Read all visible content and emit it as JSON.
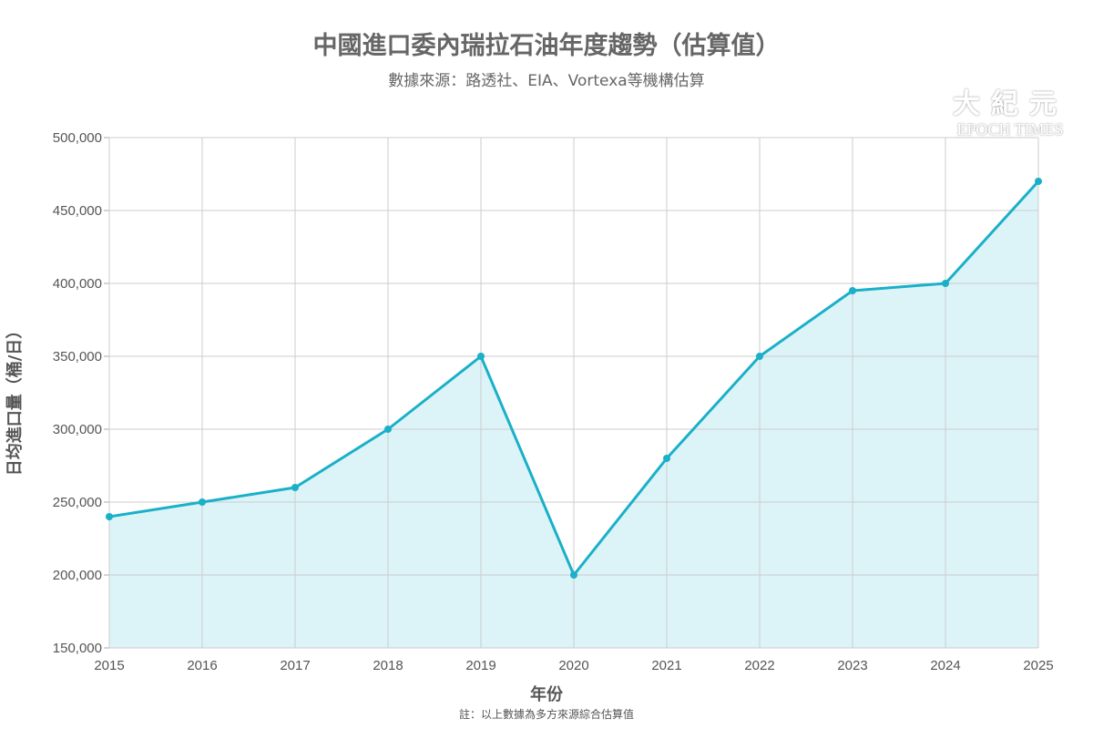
{
  "chart_data": {
    "type": "area",
    "title": "中國進口委內瑞拉石油年度趨勢（估算值）",
    "subtitle": "數據來源：路透社、EIA、Vortexa等機構估算",
    "xlabel": "年份",
    "ylabel": "日均進口量（桶/日）",
    "note": "註：以上數據為多方來源綜合估算值",
    "categories": [
      "2015",
      "2016",
      "2017",
      "2018",
      "2019",
      "2020",
      "2021",
      "2022",
      "2023",
      "2024",
      "2025"
    ],
    "values": [
      240000,
      250000,
      260000,
      300000,
      350000,
      200000,
      280000,
      350000,
      395000,
      400000,
      470000
    ],
    "ylim": [
      150000,
      500000
    ],
    "yticks": [
      150000,
      200000,
      250000,
      300000,
      350000,
      400000,
      450000,
      500000
    ],
    "ytick_labels": [
      "150,000",
      "200,000",
      "250,000",
      "300,000",
      "350,000",
      "400,000",
      "450,000",
      "500,000"
    ],
    "grid": true,
    "legend": "none",
    "colors": {
      "line": "#1ab0c8",
      "fill": "#dcf4f8",
      "grid": "#cccccc"
    }
  },
  "logo": {
    "cn": "大紀元",
    "en": "EPOCH TIMES"
  }
}
